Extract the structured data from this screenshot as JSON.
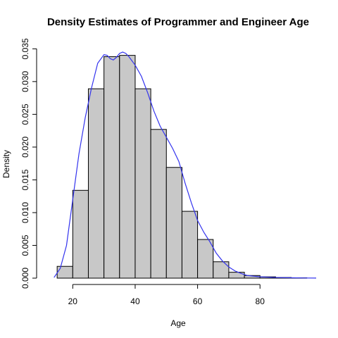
{
  "chart_data": {
    "type": "bar",
    "title": "Density Estimates of Programmer and Engineer Age",
    "xlabel": "Age",
    "ylabel": "Density",
    "bin_edges": [
      15,
      20,
      25,
      30,
      35,
      40,
      45,
      50,
      55,
      60,
      65,
      70,
      75,
      80,
      85,
      90,
      95
    ],
    "values": [
      0.0018,
      0.0134,
      0.0289,
      0.0338,
      0.034,
      0.0289,
      0.0227,
      0.0169,
      0.0102,
      0.0059,
      0.0025,
      0.0009,
      0.0004,
      0.0002,
      0.0001,
      5e-05
    ],
    "xlim": [
      10,
      98
    ],
    "ylim": [
      0,
      0.036
    ],
    "x_ticks": [
      20,
      40,
      60,
      80
    ],
    "y_ticks": [
      0.0,
      0.005,
      0.01,
      0.015,
      0.02,
      0.025,
      0.03,
      0.035
    ],
    "y_tick_labels": [
      "0.000",
      "0.005",
      "0.010",
      "0.015",
      "0.020",
      "0.025",
      "0.030",
      "0.035"
    ],
    "bar_color": "#c8c8c8",
    "density_color": "#3333ee",
    "density_curve": {
      "x": [
        14,
        16,
        18,
        20,
        22,
        24,
        26,
        28,
        30,
        31,
        32,
        33,
        34,
        35,
        36,
        37,
        38,
        40,
        42,
        44,
        46,
        48,
        50,
        52,
        54,
        56,
        58,
        60,
        62,
        64,
        66,
        68,
        70,
        72,
        74,
        76,
        78,
        80,
        85,
        90,
        95,
        98
      ],
      "y": [
        0.0001,
        0.0015,
        0.005,
        0.012,
        0.019,
        0.0245,
        0.029,
        0.0328,
        0.0341,
        0.034,
        0.0335,
        0.0333,
        0.0337,
        0.0343,
        0.0345,
        0.0343,
        0.0338,
        0.0325,
        0.0308,
        0.0283,
        0.0255,
        0.0232,
        0.0215,
        0.0198,
        0.0178,
        0.0145,
        0.0115,
        0.0088,
        0.007,
        0.0055,
        0.0038,
        0.0026,
        0.0017,
        0.0011,
        0.0007,
        0.0004,
        0.0003,
        0.0002,
        0.0001,
        5e-05,
        2e-05,
        1e-05
      ]
    }
  }
}
